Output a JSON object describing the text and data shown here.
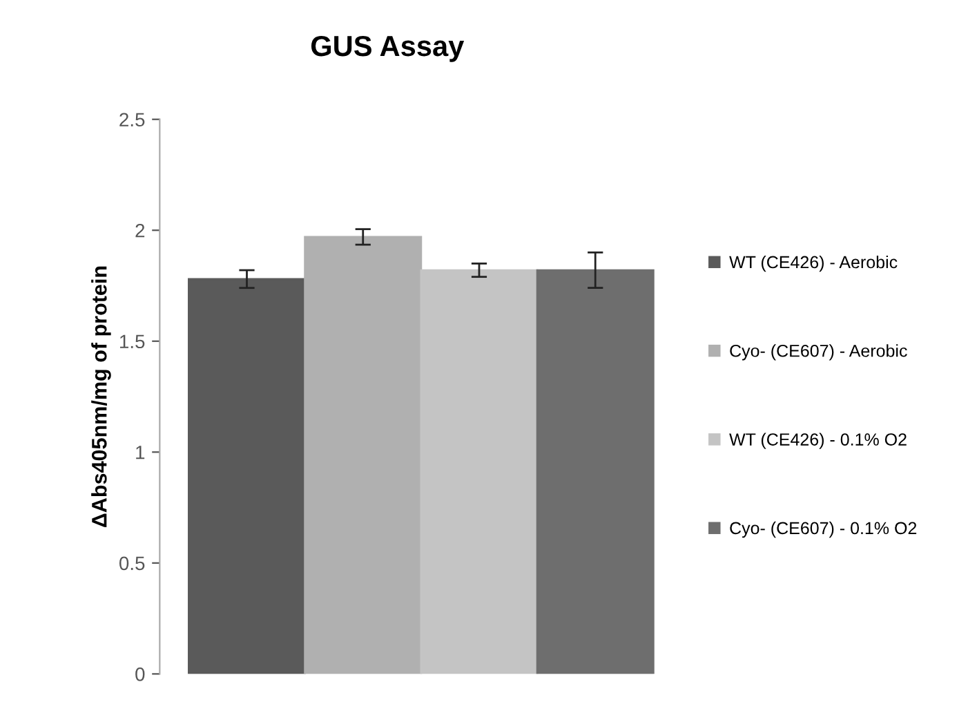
{
  "chart_data": {
    "type": "bar",
    "title": "GUS Assay",
    "ylabel": "ΔAbs405nm/mg of protein",
    "categories": [
      null
    ],
    "series": [
      {
        "name": "WT (CE426) - Aerobic",
        "color": "#5a5a5a",
        "values": [
          1.78
        ],
        "errors": [
          0.04
        ]
      },
      {
        "name": "Cyo- (CE607) - Aerobic",
        "color": "#b0b0b0",
        "values": [
          1.97
        ],
        "errors": [
          0.035
        ]
      },
      {
        "name": "WT (CE426) - 0.1% O2",
        "color": "#c4c4c4",
        "values": [
          1.82
        ],
        "errors": [
          0.03
        ]
      },
      {
        "name": "Cyo- (CE607) - 0.1% O2",
        "color": "#6e6e6e",
        "values": [
          1.82
        ],
        "errors": [
          0.08
        ]
      }
    ],
    "ylim": [
      0,
      2.5
    ],
    "yticks": [
      0,
      0.5,
      1,
      1.5,
      2,
      2.5
    ],
    "legend": "right",
    "grid": false
  }
}
